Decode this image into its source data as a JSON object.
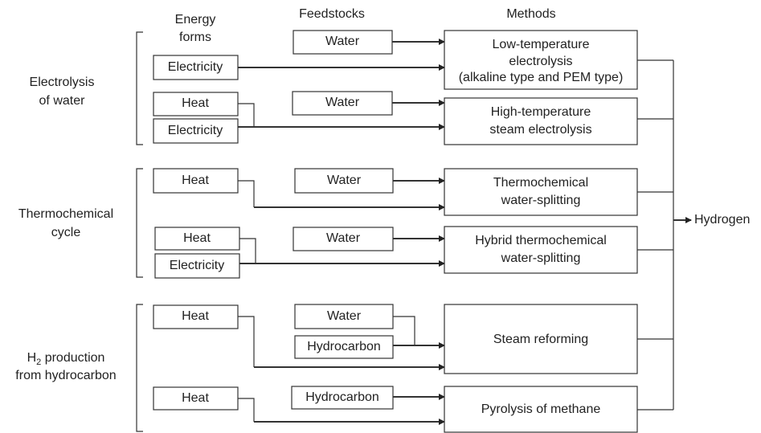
{
  "headers": {
    "energy": [
      "Energy",
      "forms"
    ],
    "feedstocks": "Feedstocks",
    "methods": "Methods"
  },
  "groups": [
    {
      "lines": [
        "Electrolysis",
        "of water"
      ]
    },
    {
      "lines": [
        "Thermochemical",
        "cycle"
      ]
    },
    {
      "main": "H",
      "sub": "2",
      "rest": " production",
      "line2": "from hydrocarbon"
    }
  ],
  "energy_boxes": [
    "Electricity",
    "Heat",
    "Electricity",
    "Heat",
    "Heat",
    "Electricity",
    "Heat",
    "Heat"
  ],
  "feedstock_boxes": [
    "Water",
    "Water",
    "Water",
    "Water",
    "Water",
    "Hydrocarbon",
    "Hydrocarbon"
  ],
  "methods": [
    [
      "Low-temperature",
      "electrolysis",
      "(alkaline type and PEM type)"
    ],
    [
      "High-temperature",
      "steam electrolysis"
    ],
    [
      "Thermochemical",
      "water-splitting"
    ],
    [
      "Hybrid thermochemical",
      "water-splitting"
    ],
    [
      "Steam reforming"
    ],
    [
      "Pyrolysis of methane"
    ]
  ],
  "output": "Hydrogen"
}
